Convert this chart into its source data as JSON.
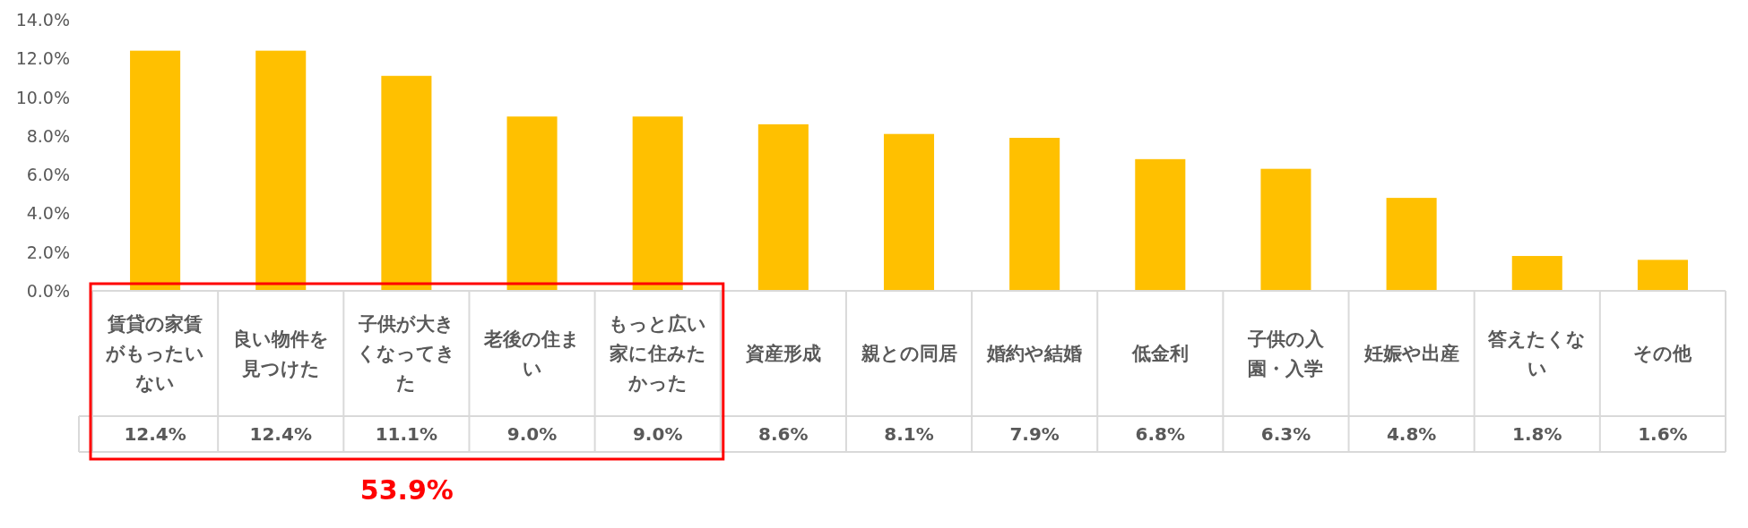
{
  "chart_data": {
    "type": "bar",
    "categories": [
      "賃貸の家賃がもったいない",
      "良い物件を見つけた",
      "子供が大きくなってきた",
      "老後の住まい",
      "もっと広い家に住みたかった",
      "資産形成",
      "親との同居",
      "婚約や結婚",
      "低金利",
      "子供の入園・入学",
      "妊娠や出産",
      "答えたくない",
      "その他"
    ],
    "values": [
      12.4,
      12.4,
      11.1,
      9.0,
      9.0,
      8.6,
      8.1,
      7.9,
      6.8,
      6.3,
      4.8,
      1.8,
      1.6
    ],
    "color": "#ffc000",
    "ylim": [
      0,
      14
    ],
    "yticks": [
      {
        "value": 0,
        "label": "0.0%"
      },
      {
        "value": 2,
        "label": "2.0%"
      },
      {
        "value": 4,
        "label": "4.0%"
      },
      {
        "value": 6,
        "label": "6.0%"
      },
      {
        "value": 8,
        "label": "8.0%"
      },
      {
        "value": 10,
        "label": "10.0%"
      },
      {
        "value": 12,
        "label": "12.0%"
      },
      {
        "value": 14,
        "label": "14.0%"
      }
    ],
    "value_labels": [
      "12.4%",
      "12.4%",
      "11.1%",
      "9.0%",
      "9.0%",
      "8.6%",
      "8.1%",
      "7.9%",
      "6.8%",
      "6.3%",
      "4.8%",
      "1.8%",
      "1.6%"
    ],
    "annotations": [
      "53.9%"
    ],
    "grid": false
  }
}
